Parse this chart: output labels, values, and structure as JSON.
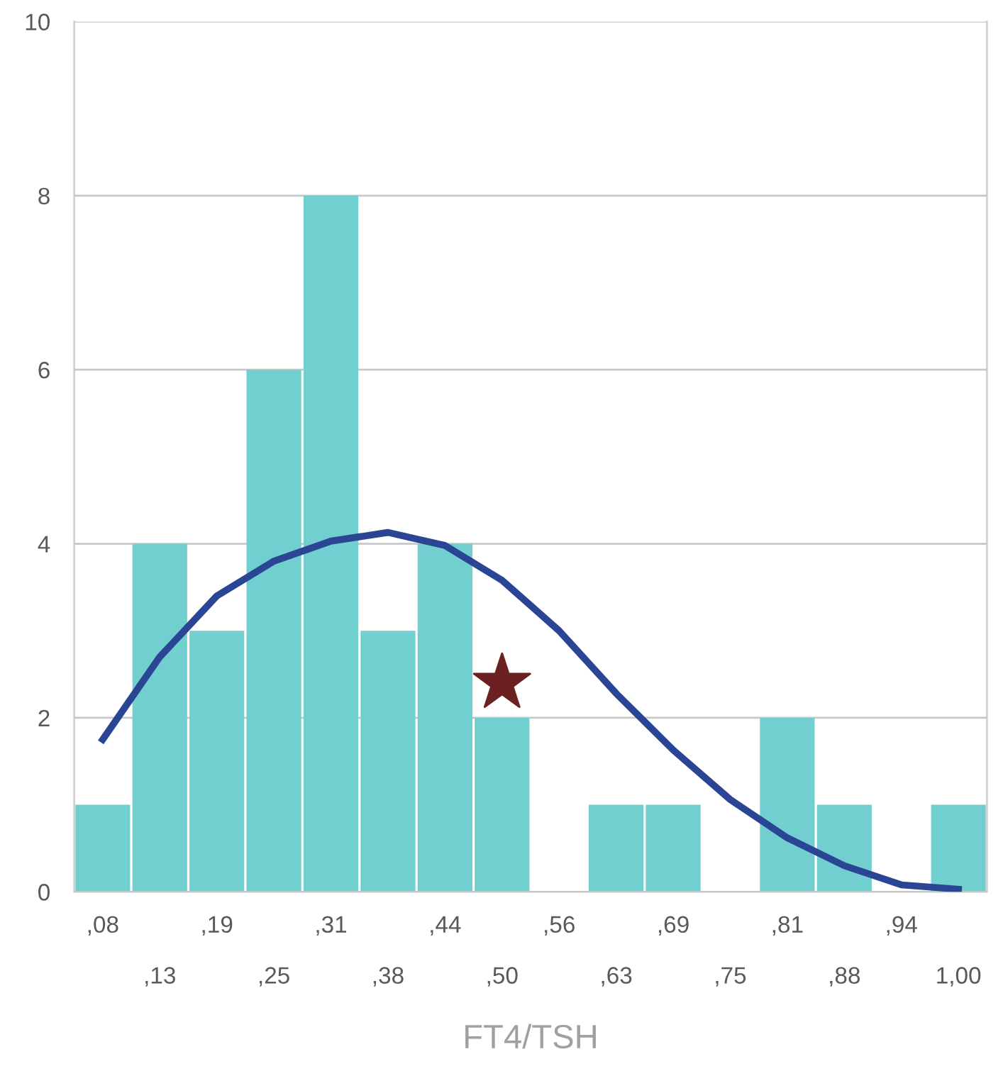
{
  "chart_data": {
    "type": "bar",
    "xlabel": "FT4/TSH",
    "categories": [
      ",08",
      ",13",
      ",19",
      ",25",
      ",31",
      ",38",
      ",44",
      ",50",
      ",56",
      ",63",
      ",69",
      ",75",
      ",81",
      ",88",
      ",94",
      "1,00"
    ],
    "series": [
      {
        "color": "#72cfd0",
        "values": [
          1,
          4,
          3,
          6,
          8,
          3,
          4,
          2,
          0,
          1,
          1,
          0,
          2,
          1,
          0,
          1
        ]
      },
      {
        "type": "line",
        "color": "#2a4593",
        "values": [
          1.75,
          2.7,
          3.4,
          3.8,
          4.03,
          4.13,
          3.98,
          3.58,
          3.0,
          2.28,
          1.63,
          1.06,
          0.62,
          0.3,
          0.08,
          0.03
        ]
      },
      {
        "type": "scatter",
        "color": "#6b2121",
        "marker": "star",
        "x": [
          ",50"
        ],
        "values": [
          2.4
        ]
      }
    ],
    "ylim": [
      0,
      10
    ],
    "yticks": [
      0,
      2,
      4,
      6,
      8,
      10
    ],
    "grid": "y"
  }
}
